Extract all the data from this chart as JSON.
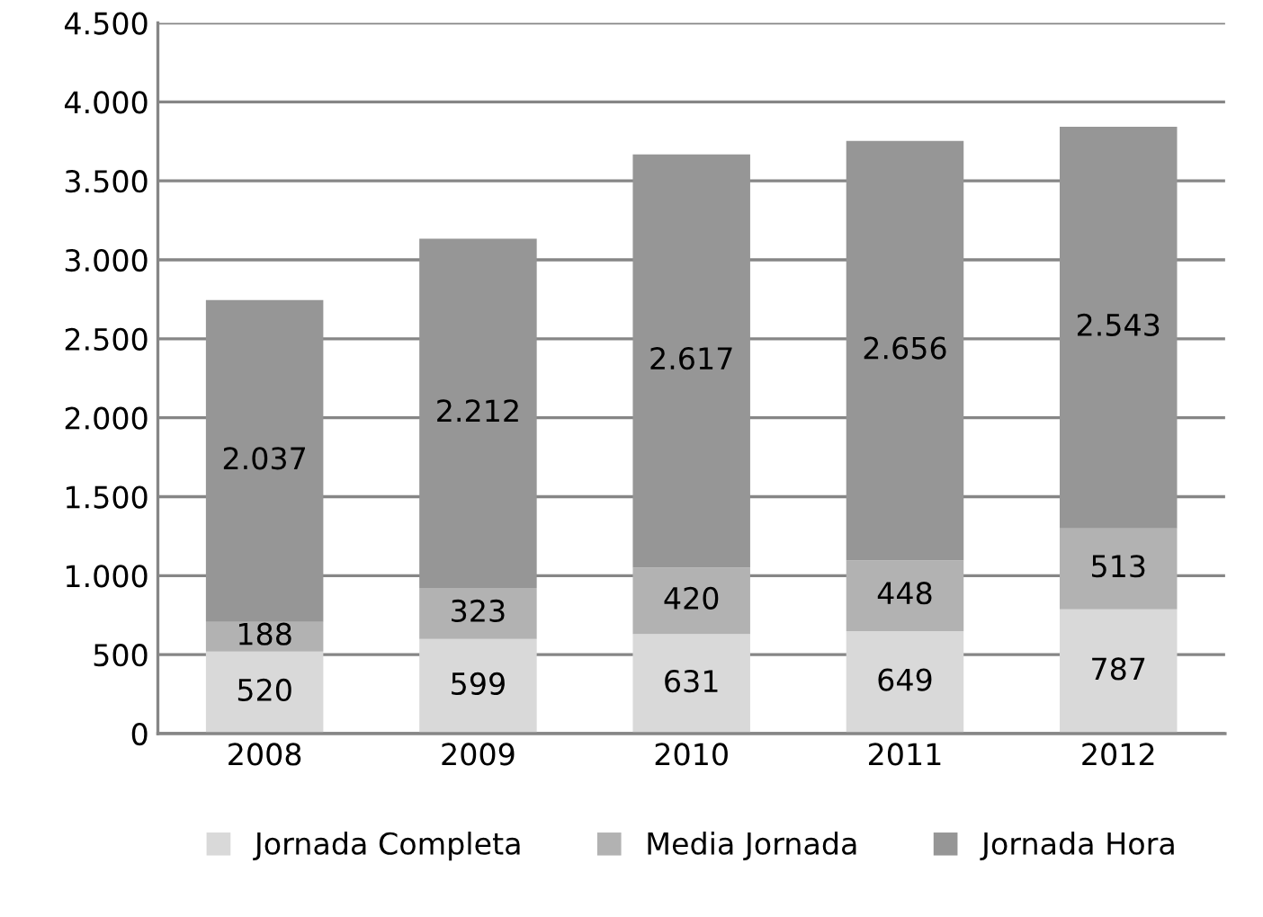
{
  "chart_data": {
    "type": "bar",
    "stacked": true,
    "categories": [
      "2008",
      "2009",
      "2010",
      "2011",
      "2012"
    ],
    "series": [
      {
        "name": "Jornada Completa",
        "color": "#d9d9d9",
        "values": [
          520,
          599,
          631,
          649,
          787
        ],
        "value_labels": [
          "520",
          "599",
          "631",
          "649",
          "787"
        ]
      },
      {
        "name": "Media Jornada",
        "color": "#b2b2b2",
        "values": [
          188,
          323,
          420,
          448,
          513
        ],
        "value_labels": [
          "188",
          "323",
          "420",
          "448",
          "513"
        ]
      },
      {
        "name": "Jornada Hora",
        "color": "#969696",
        "values": [
          2037,
          2212,
          2617,
          2656,
          2543
        ],
        "value_labels": [
          "2.037",
          "2.212",
          "2.617",
          "2.656",
          "2.543"
        ]
      }
    ],
    "ylim": [
      0,
      4500
    ],
    "yticks": [
      0,
      {
        "value": 500,
        "label": "500"
      },
      {
        "value": 1000,
        "label": "1.000"
      },
      {
        "value": 1500,
        "label": "1.500"
      },
      {
        "value": 2000,
        "label": "2.000"
      },
      {
        "value": 2500,
        "label": "2.500"
      },
      {
        "value": 3000,
        "label": "3.000"
      },
      {
        "value": 3500,
        "label": "3.500"
      },
      {
        "value": 4000,
        "label": "4.000"
      },
      {
        "value": 4500,
        "label": "4.500"
      }
    ],
    "grid": "y",
    "legend": "bottom"
  }
}
